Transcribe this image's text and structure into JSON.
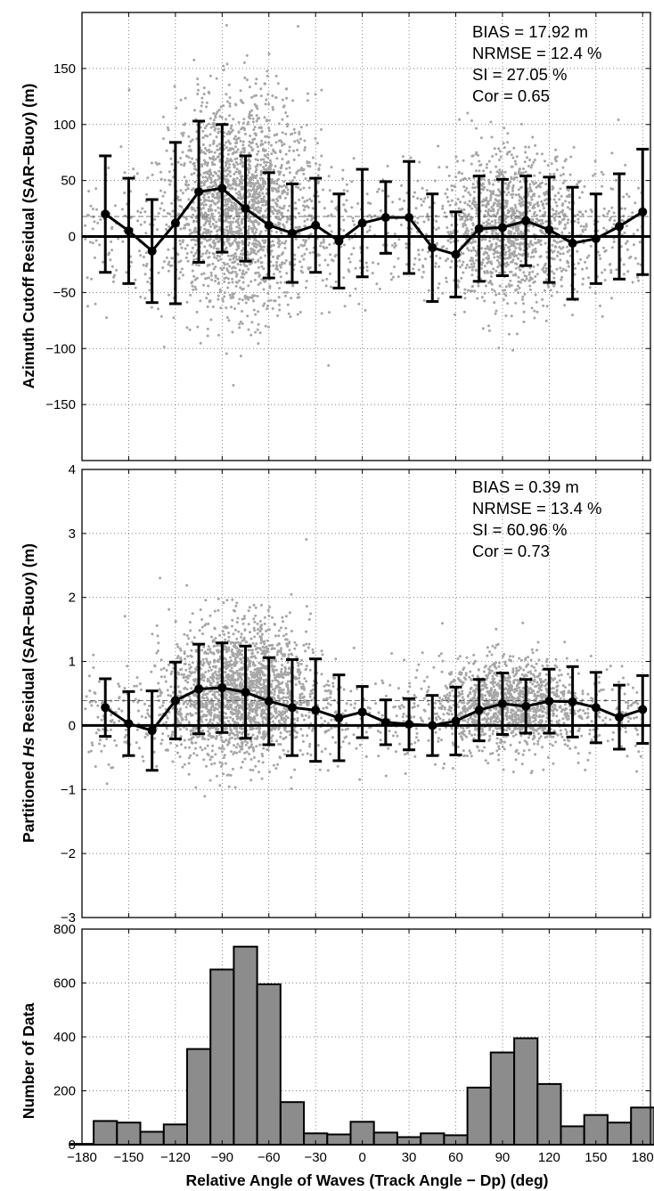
{
  "chart_data": [
    {
      "type": "scatter",
      "ylabel": "Azimuth Cutoff Residual (SAR−Buoy) (m)",
      "xlim": [
        -180,
        185
      ],
      "ylim": [
        -200,
        200
      ],
      "xticks": [
        -180,
        -150,
        -120,
        -90,
        -60,
        -30,
        0,
        30,
        60,
        90,
        120,
        150,
        180
      ],
      "yticks": [
        -150,
        -100,
        -50,
        0,
        50,
        100,
        150
      ],
      "grid": true,
      "bias_line": 17.92,
      "stats": [
        "BIAS = 17.92 m",
        "NRMSE = 12.4 %",
        "SI = 27.05 %",
        "Cor = 0.65"
      ],
      "binned_series": {
        "x": [
          -165,
          -150,
          -135,
          -120,
          -105,
          -90,
          -75,
          -60,
          -45,
          -30,
          -15,
          0,
          15,
          30,
          45,
          60,
          75,
          90,
          105,
          120,
          135,
          150,
          165,
          180
        ],
        "mean": [
          20,
          5,
          -13,
          12,
          40,
          43,
          25,
          10,
          3,
          10,
          -4,
          12,
          17,
          17,
          -10,
          -16,
          7,
          8,
          14,
          6,
          -6,
          -2,
          9,
          22
        ],
        "std": [
          52,
          47,
          46,
          72,
          63,
          57,
          47,
          47,
          44,
          42,
          42,
          48,
          32,
          50,
          48,
          38,
          47,
          43,
          40,
          47,
          50,
          40,
          47,
          56
        ]
      },
      "scatter_cloud": [
        {
          "x_center": -78,
          "x_spread": 22,
          "y_center": 30,
          "y_spread": 48,
          "count": 1800
        },
        {
          "x_center": 95,
          "x_spread": 22,
          "y_center": 10,
          "y_spread": 33,
          "count": 1100
        },
        {
          "x_range": [
            -180,
            180
          ],
          "y_center": 5,
          "y_spread": 30,
          "count": 900
        }
      ]
    },
    {
      "type": "scatter",
      "ylabel": "Partitioned Hs Residual (SAR−Buoy) (m)",
      "ylabel_parts": [
        "Partitioned ",
        "Hs",
        " Residual (SAR−Buoy) (m)"
      ],
      "xlim": [
        -180,
        185
      ],
      "ylim": [
        -3,
        4
      ],
      "xticks": [
        -180,
        -150,
        -120,
        -90,
        -60,
        -30,
        0,
        30,
        60,
        90,
        120,
        150,
        180
      ],
      "yticks": [
        -3,
        -2,
        -1,
        0,
        1,
        2,
        3,
        4
      ],
      "grid": true,
      "bias_line": 0.39,
      "stats": [
        "BIAS = 0.39 m",
        "NRMSE = 13.4 %",
        "SI = 60.96 %",
        "Cor = 0.73"
      ],
      "binned_series": {
        "x": [
          -165,
          -150,
          -135,
          -120,
          -105,
          -90,
          -75,
          -60,
          -45,
          -30,
          -15,
          0,
          15,
          30,
          45,
          60,
          75,
          90,
          105,
          120,
          135,
          150,
          165,
          180
        ],
        "mean": [
          0.28,
          0.03,
          -0.08,
          0.39,
          0.57,
          0.59,
          0.52,
          0.38,
          0.28,
          0.24,
          0.12,
          0.21,
          0.05,
          0.02,
          0.0,
          0.07,
          0.24,
          0.34,
          0.3,
          0.38,
          0.37,
          0.28,
          0.13,
          0.25
        ],
        "std": [
          0.45,
          0.5,
          0.62,
          0.6,
          0.7,
          0.7,
          0.72,
          0.68,
          0.75,
          0.8,
          0.67,
          0.4,
          0.35,
          0.4,
          0.47,
          0.53,
          0.48,
          0.48,
          0.42,
          0.5,
          0.55,
          0.55,
          0.5,
          0.53
        ]
      },
      "scatter_cloud": [
        {
          "x_center": -78,
          "x_spread": 22,
          "y_center": 0.55,
          "y_spread": 0.55,
          "count": 1800
        },
        {
          "x_center": 95,
          "x_spread": 22,
          "y_center": 0.35,
          "y_spread": 0.35,
          "count": 1100
        },
        {
          "x_range": [
            -180,
            180
          ],
          "y_center": 0.15,
          "y_spread": 0.35,
          "count": 900
        }
      ]
    },
    {
      "type": "bar",
      "xlabel": "Relative Angle of Waves (Track Angle − Dp) (deg)",
      "ylabel": "Number of Data",
      "xlim": [
        -180,
        185
      ],
      "ylim": [
        0,
        800
      ],
      "xticks": [
        -180,
        -150,
        -120,
        -90,
        -60,
        -30,
        0,
        30,
        60,
        90,
        120,
        150,
        180
      ],
      "yticks": [
        0,
        200,
        400,
        600,
        800
      ],
      "grid": true,
      "bin_width": 15,
      "x": [
        -180,
        -165,
        -150,
        -135,
        -120,
        -105,
        -90,
        -75,
        -60,
        -45,
        -30,
        -15,
        0,
        15,
        30,
        45,
        60,
        75,
        90,
        105,
        120,
        135,
        150,
        165,
        180
      ],
      "values": [
        3,
        88,
        82,
        48,
        75,
        355,
        650,
        735,
        595,
        158,
        42,
        38,
        85,
        45,
        28,
        42,
        35,
        212,
        342,
        395,
        225,
        68,
        110,
        82,
        138
      ]
    }
  ],
  "colors": {
    "scatter": "#a6a6a6",
    "bar_fill": "#8c8c8c",
    "line": "#000000"
  }
}
